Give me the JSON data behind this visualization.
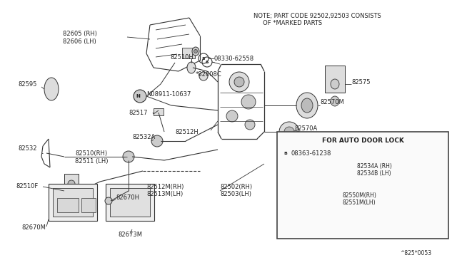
{
  "bg_color": "#ffffff",
  "line_color": "#333333",
  "text_color": "#222222",
  "note_text": "NOTE; PART CODE 92502,92503 CONSISTS\n     OF *MARKED PARTS",
  "footer": "^825*0053",
  "inset_title": "FOR AUTO DOOR LOCK",
  "label_fs": 6.0,
  "border_color": "#555555"
}
